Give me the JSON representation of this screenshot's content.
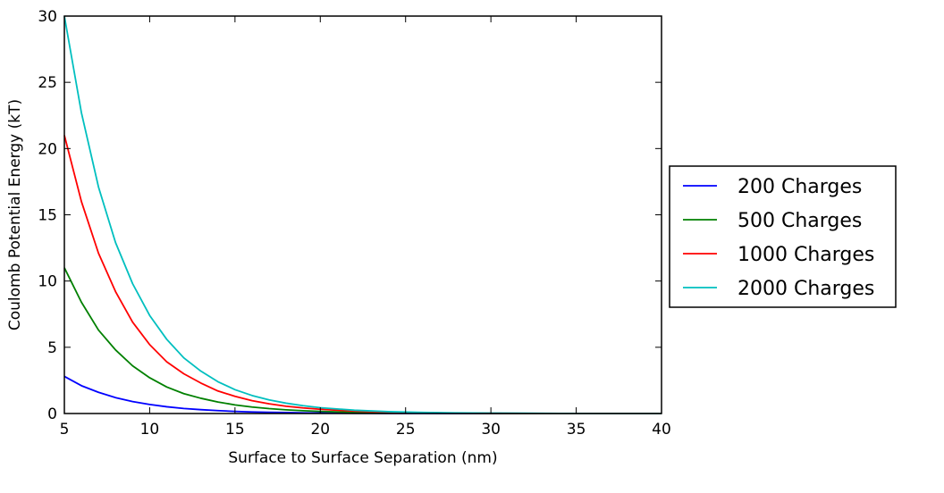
{
  "chart_data": {
    "type": "line",
    "title": "",
    "xlabel": "Surface to Surface Separation (nm)",
    "ylabel": "Coulomb Potential Energy (kT)",
    "xlim": [
      5,
      40
    ],
    "ylim": [
      0,
      30
    ],
    "xticks": [
      5,
      10,
      15,
      20,
      25,
      30,
      35,
      40
    ],
    "yticks": [
      0,
      5,
      10,
      15,
      20,
      25,
      30
    ],
    "grid": false,
    "legend_position": "outside-right",
    "x": [
      5,
      6,
      7,
      8,
      9,
      10,
      11,
      12,
      13,
      14,
      15,
      16,
      17,
      18,
      19,
      20,
      22,
      24,
      26,
      28,
      30,
      32,
      34,
      36,
      38,
      40
    ],
    "series": [
      {
        "name": "200 Charges",
        "color": "#0000ff",
        "values": [
          2.8,
          2.1,
          1.6,
          1.2,
          0.9,
          0.68,
          0.51,
          0.38,
          0.29,
          0.22,
          0.16,
          0.12,
          0.09,
          0.07,
          0.05,
          0.04,
          0.02,
          0.01,
          0.01,
          0.0,
          0.0,
          0.0,
          0.0,
          0.0,
          0.0,
          0.0
        ]
      },
      {
        "name": "500 Charges",
        "color": "#008000",
        "values": [
          11.0,
          8.4,
          6.3,
          4.8,
          3.6,
          2.7,
          2.0,
          1.5,
          1.15,
          0.87,
          0.65,
          0.49,
          0.37,
          0.28,
          0.21,
          0.16,
          0.09,
          0.05,
          0.03,
          0.02,
          0.01,
          0.0,
          0.0,
          0.0,
          0.0,
          0.0
        ]
      },
      {
        "name": "1000 Charges",
        "color": "#ff0000",
        "values": [
          21.0,
          16.0,
          12.1,
          9.2,
          6.9,
          5.2,
          3.9,
          3.0,
          2.3,
          1.7,
          1.3,
          0.97,
          0.73,
          0.55,
          0.42,
          0.32,
          0.18,
          0.1,
          0.06,
          0.03,
          0.02,
          0.01,
          0.01,
          0.0,
          0.0,
          0.0
        ]
      },
      {
        "name": "2000 Charges",
        "color": "#00bfbf",
        "values": [
          30.0,
          22.7,
          17.1,
          12.9,
          9.8,
          7.4,
          5.6,
          4.2,
          3.2,
          2.4,
          1.8,
          1.36,
          1.03,
          0.78,
          0.59,
          0.44,
          0.25,
          0.14,
          0.08,
          0.05,
          0.03,
          0.02,
          0.01,
          0.0,
          0.0,
          0.0
        ]
      }
    ]
  }
}
